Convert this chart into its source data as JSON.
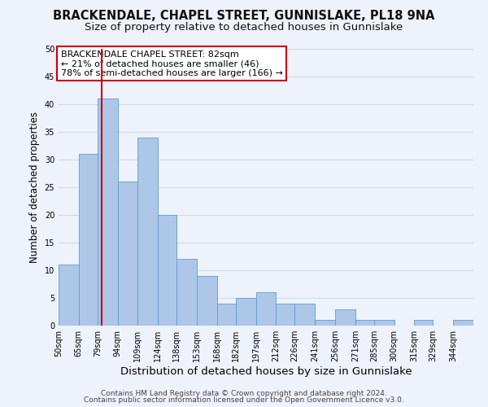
{
  "title1": "BRACKENDALE, CHAPEL STREET, GUNNISLAKE, PL18 9NA",
  "title2": "Size of property relative to detached houses in Gunnislake",
  "xlabel": "Distribution of detached houses by size in Gunnislake",
  "ylabel": "Number of detached properties",
  "footnote1": "Contains HM Land Registry data © Crown copyright and database right 2024.",
  "footnote2": "Contains public sector information licensed under the Open Government Licence v3.0.",
  "annotation_line1": "BRACKENDALE CHAPEL STREET: 82sqm",
  "annotation_line2": "← 21% of detached houses are smaller (46)",
  "annotation_line3": "78% of semi-detached houses are larger (166) →",
  "bar_edges": [
    50,
    65,
    79,
    94,
    109,
    124,
    138,
    153,
    168,
    182,
    197,
    212,
    226,
    241,
    256,
    271,
    285,
    300,
    315,
    329,
    344
  ],
  "bar_heights": [
    11,
    31,
    41,
    26,
    34,
    20,
    12,
    9,
    4,
    5,
    6,
    4,
    4,
    1,
    3,
    1,
    1,
    0,
    1,
    0,
    1
  ],
  "tick_labels": [
    "50sqm",
    "65sqm",
    "79sqm",
    "94sqm",
    "109sqm",
    "124sqm",
    "138sqm",
    "153sqm",
    "168sqm",
    "182sqm",
    "197sqm",
    "212sqm",
    "226sqm",
    "241sqm",
    "256sqm",
    "271sqm",
    "285sqm",
    "300sqm",
    "315sqm",
    "329sqm",
    "344sqm"
  ],
  "bar_color": "#aec6e8",
  "bar_edge_color": "#5a9fd4",
  "vline_x": 82,
  "vline_color": "#cc0000",
  "ylim": [
    0,
    50
  ],
  "yticks": [
    0,
    5,
    10,
    15,
    20,
    25,
    30,
    35,
    40,
    45,
    50
  ],
  "grid_color": "#d0daea",
  "background_color": "#eef2fa",
  "annotation_box_color": "#ffffff",
  "annotation_box_edge": "#cc0000",
  "title1_fontsize": 10.5,
  "title2_fontsize": 9.5,
  "xlabel_fontsize": 9.5,
  "ylabel_fontsize": 8.5,
  "tick_fontsize": 7,
  "annotation_fontsize": 8,
  "footnote_fontsize": 6.5
}
